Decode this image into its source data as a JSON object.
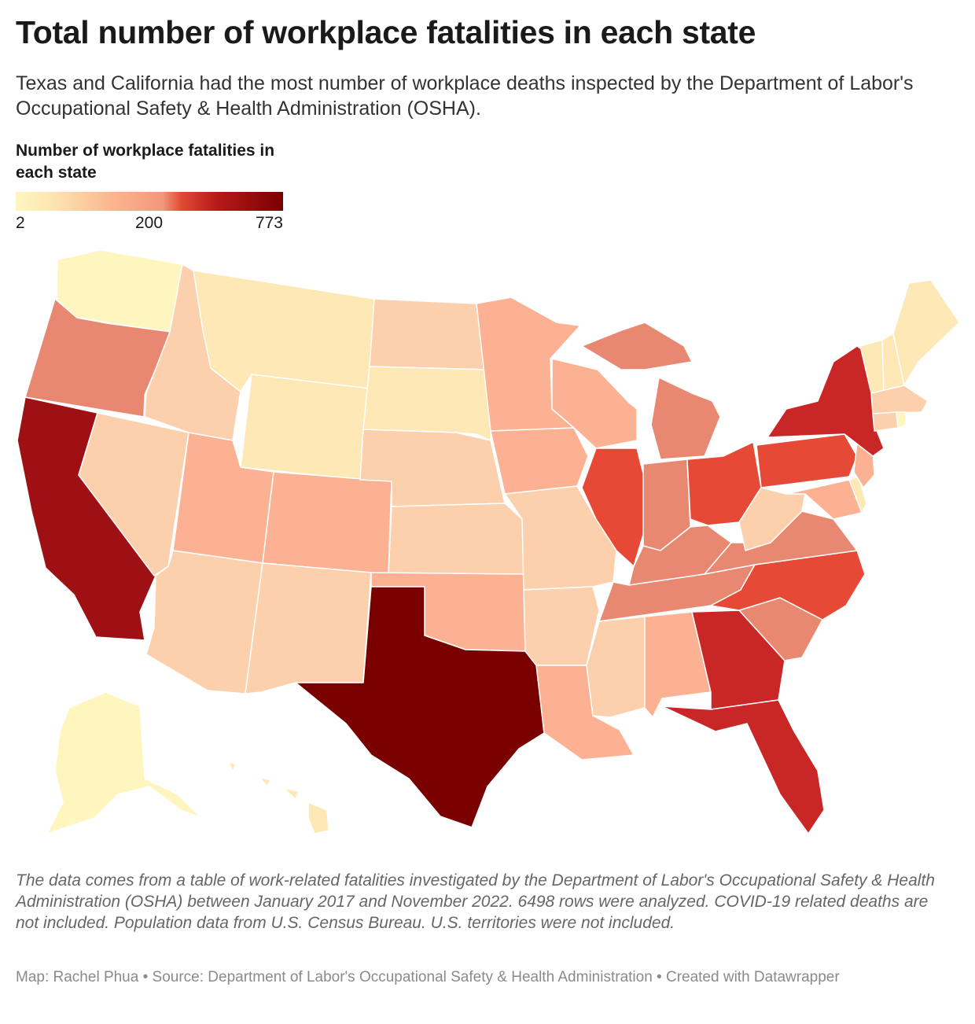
{
  "title": "Total number of workplace fatalities in each state",
  "subtitle": "Texas and California had the most number of workplace deaths inspected by the Department of Labor's Occupational Safety & Health Administration (OSHA).",
  "legend": {
    "title": "Number of workplace fatalities in each state",
    "min_label": "2",
    "mid_label": "200",
    "max_label": "773"
  },
  "colors": {
    "very_low": "#fff5bf",
    "low": "#fde8b6",
    "low_mid": "#fdd0ad",
    "mid": "#fbb192",
    "mid_high": "#e98870",
    "high": "#e64a36",
    "higher": "#c92626",
    "very_high": "#9e1014",
    "max": "#7a0000",
    "background": "#ffffff"
  },
  "notes": "The data comes from a table of work-related fatalities investigated by the Department of Labor's Occupational Safety & Health Administration (OSHA) between January 2017 and November 2022. 6498 rows were analyzed. COVID-19 related deaths are not included. Population data from U.S. Census Bureau. U.S. territories were not included.",
  "byline": "Map: Rachel Phua • Source: Department of Labor's Occupational Safety & Health Administration • Created with Datawrapper"
}
